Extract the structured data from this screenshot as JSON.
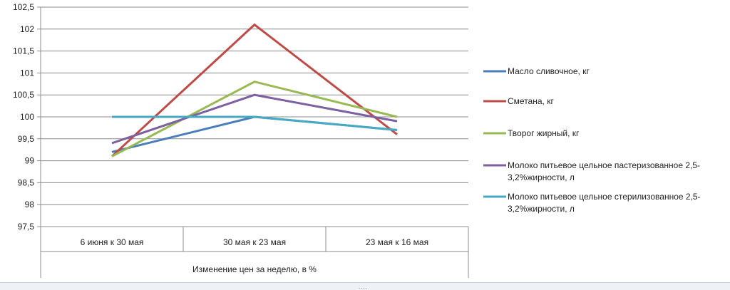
{
  "chart_data": {
    "type": "line",
    "title": "",
    "xlabel": "Изменение цен за неделю, в %",
    "ylabel": "",
    "ylim": [
      97.5,
      102.5
    ],
    "ytick_step": 0.5,
    "ytick_labels": [
      "97,5",
      "98",
      "98,5",
      "99",
      "99,5",
      "100",
      "100,5",
      "101",
      "101,5",
      "102",
      "102,5"
    ],
    "categories": [
      "6 июня к 30 мая",
      "30 мая к 23  мая",
      "23 мая к 16 мая"
    ],
    "grid": true,
    "legend_position": "right",
    "series": [
      {
        "name": "Масло сливочное, кг",
        "color": "#4a7ebb",
        "values": [
          99.2,
          100.0,
          99.7
        ]
      },
      {
        "name": "Сметана, кг",
        "color": "#be4b48",
        "values": [
          99.1,
          102.1,
          99.6
        ]
      },
      {
        "name": "Творог жирный, кг",
        "color": "#98b954",
        "values": [
          99.1,
          100.8,
          100.0
        ]
      },
      {
        "name": "Молоко питьевое цельное пастеризованное 2,5-3,2%жирности, л",
        "color": "#7d60a0",
        "values": [
          99.4,
          100.5,
          99.9
        ]
      },
      {
        "name": "Молоко питьевое цельное стерилизованное 2,5-3,2%жирности, л",
        "color": "#46aac5",
        "values": [
          100.0,
          100.0,
          99.7
        ]
      }
    ]
  },
  "legend_lines": [
    [
      "Масло сливочное, кг"
    ],
    [
      "Сметана, кг"
    ],
    [
      "Творог жирный, кг"
    ],
    [
      "Молоко питьевое цельное пастеризованное 2,5-",
      "3,2%жирности, л"
    ],
    [
      "Молоко питьевое цельное стерилизованное 2,5-",
      "3,2%жирности, л"
    ]
  ],
  "status_grip": "...."
}
